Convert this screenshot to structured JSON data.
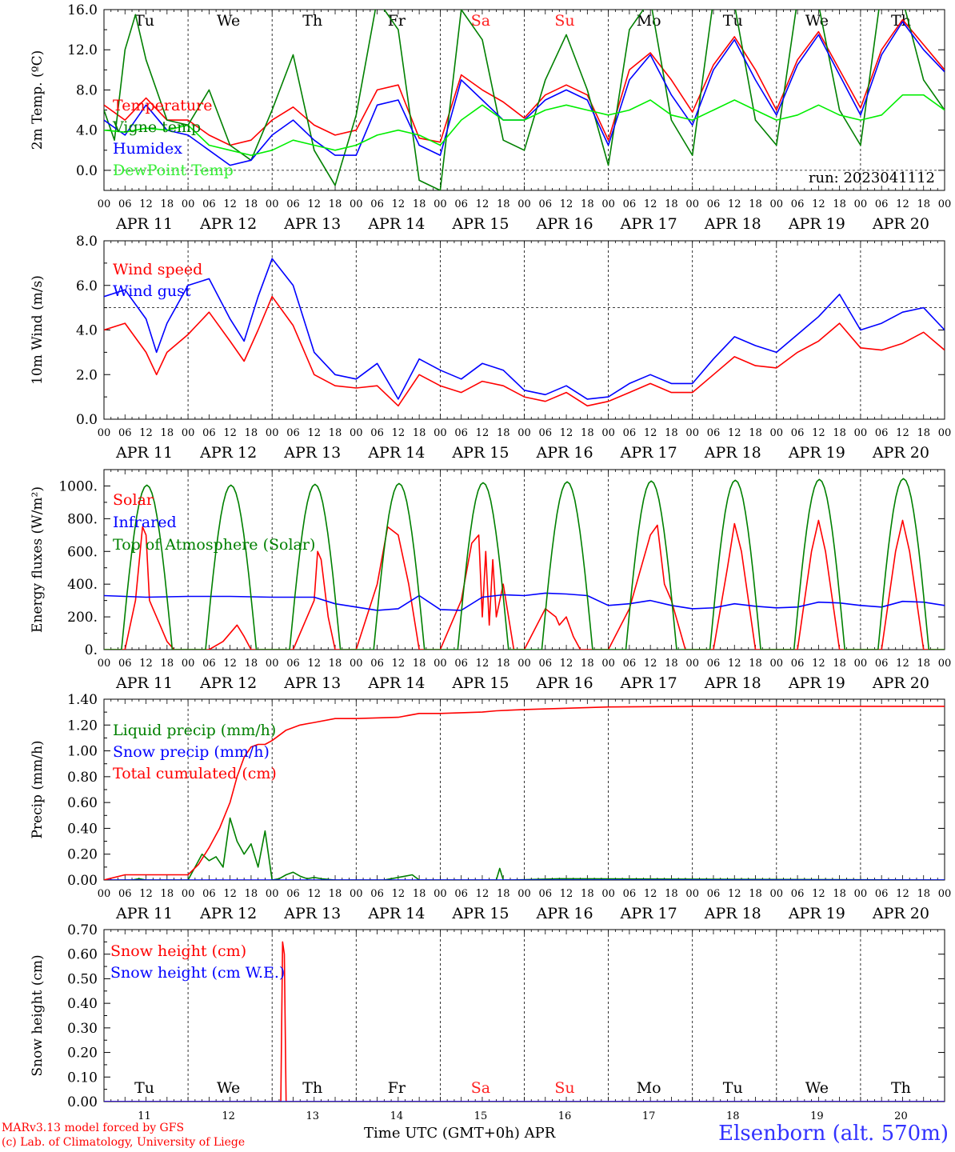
{
  "meta": {
    "run_label": "run: 2023041112",
    "model_line": "MARv3.13 model forced by GFS",
    "credit_line": "(c) Lab. of Climatology, University of Liege",
    "time_axis_label": "Time UTC (GMT+0h) APR",
    "station": "Elsenborn (alt. 570m)",
    "hour_ticks": [
      "00",
      "06",
      "12",
      "18"
    ],
    "date_labels": [
      "APR 11",
      "APR 12",
      "APR 13",
      "APR 14",
      "APR 15",
      "APR 16",
      "APR 17",
      "APR 18",
      "APR 19",
      "APR 20"
    ],
    "day_names": [
      "Tu",
      "We",
      "Th",
      "Fr",
      "Sa",
      "Su",
      "Mo",
      "Tu",
      "We",
      "Th"
    ],
    "day_numbers": [
      "11",
      "12",
      "13",
      "14",
      "15",
      "16",
      "17",
      "18",
      "19",
      "20"
    ],
    "weekend_color": "#ff2020",
    "colors": {
      "red": "#ff0000",
      "green": "#008000",
      "blue": "#0000ff",
      "lightgreen": "#00ee00"
    }
  },
  "chart_data": [
    {
      "type": "line",
      "title": "",
      "ylabel": "2m Temp. (ºC)",
      "ylim": [
        -2,
        16
      ],
      "yticks": [
        "0.0",
        "4.0",
        "8.0",
        "12.0",
        "16.0"
      ],
      "hline": 0,
      "x_unit": "hours since APR 11 00 UTC",
      "series": [
        {
          "name": "Temperature",
          "color": "#ff0000",
          "x": [
            0,
            6,
            12,
            18,
            24,
            30,
            36,
            42,
            48,
            54,
            60,
            66,
            72,
            78,
            84,
            90,
            96,
            102,
            108,
            114,
            120,
            126,
            132,
            138,
            144,
            150,
            156,
            162,
            168,
            174,
            180,
            186,
            192,
            198,
            204,
            210,
            216,
            222,
            228,
            234,
            240
          ],
          "y": [
            6.5,
            5.0,
            7.2,
            5.0,
            5.0,
            3.5,
            2.5,
            3.0,
            5.0,
            6.3,
            4.5,
            3.5,
            4.0,
            8.0,
            8.5,
            3.2,
            2.8,
            9.5,
            8.0,
            6.8,
            5.2,
            7.5,
            8.5,
            7.5,
            3.0,
            10.0,
            11.7,
            9.0,
            5.8,
            10.5,
            13.3,
            10.0,
            6.0,
            11.0,
            13.8,
            10.0,
            6.2,
            12.0,
            15.0,
            12.5,
            10.0
          ]
        },
        {
          "name": "Vigne temp",
          "color": "#008000",
          "x": [
            0,
            3,
            6,
            9,
            12,
            15,
            18,
            24,
            30,
            36,
            42,
            48,
            54,
            60,
            66,
            72,
            78,
            84,
            90,
            96,
            102,
            108,
            114,
            120,
            126,
            132,
            138,
            144,
            150,
            156,
            162,
            168,
            174,
            180,
            186,
            192,
            198,
            204,
            210,
            216,
            222,
            228,
            234,
            240
          ],
          "y": [
            6.0,
            3.0,
            12.0,
            15.5,
            11.0,
            8.0,
            5.0,
            4.5,
            8.0,
            2.5,
            1.0,
            6.0,
            11.5,
            2.0,
            -1.5,
            5.5,
            17.0,
            14.0,
            -1.0,
            -2.0,
            16.0,
            13.0,
            3.0,
            2.0,
            9.0,
            13.5,
            8.0,
            0.5,
            14.0,
            17.0,
            5.0,
            1.5,
            17.0,
            16.5,
            5.0,
            2.5,
            17.0,
            16.5,
            6.0,
            2.5,
            18.0,
            17.0,
            9.0,
            6.0
          ]
        },
        {
          "name": "Humidex",
          "color": "#0000ff",
          "x": [
            0,
            6,
            12,
            18,
            24,
            30,
            36,
            42,
            48,
            54,
            60,
            66,
            72,
            78,
            84,
            90,
            96,
            102,
            108,
            114,
            120,
            126,
            132,
            138,
            144,
            150,
            156,
            162,
            168,
            174,
            180,
            186,
            192,
            198,
            204,
            210,
            216,
            222,
            228,
            234,
            240
          ],
          "y": [
            5.0,
            3.5,
            6.5,
            4.0,
            3.5,
            2.0,
            0.5,
            1.0,
            3.5,
            5.0,
            3.0,
            1.5,
            1.5,
            6.5,
            7.0,
            2.5,
            1.5,
            9.0,
            7.0,
            5.0,
            5.0,
            7.0,
            8.0,
            7.0,
            2.5,
            9.0,
            11.5,
            7.5,
            4.5,
            10.0,
            13.0,
            9.0,
            5.5,
            10.5,
            13.5,
            9.5,
            5.5,
            11.5,
            14.8,
            12.0,
            9.8
          ]
        },
        {
          "name": "DewPoint Temp",
          "color": "#00ee00",
          "x": [
            0,
            6,
            12,
            18,
            24,
            30,
            36,
            42,
            48,
            54,
            60,
            66,
            72,
            78,
            84,
            90,
            96,
            102,
            108,
            114,
            120,
            126,
            132,
            138,
            144,
            150,
            156,
            162,
            168,
            174,
            180,
            186,
            192,
            198,
            204,
            210,
            216,
            222,
            228,
            234,
            240
          ],
          "y": [
            4.0,
            3.8,
            4.2,
            4.0,
            4.5,
            2.5,
            2.0,
            1.5,
            2.0,
            3.0,
            2.5,
            2.0,
            2.5,
            3.5,
            4.0,
            3.5,
            2.5,
            5.0,
            6.5,
            5.0,
            5.0,
            6.0,
            6.5,
            6.0,
            5.5,
            6.0,
            7.0,
            5.5,
            5.0,
            6.0,
            7.0,
            6.0,
            5.0,
            5.5,
            6.5,
            5.5,
            5.0,
            5.5,
            7.5,
            7.5,
            6.0
          ]
        }
      ]
    },
    {
      "type": "line",
      "title": "",
      "ylabel": "10m Wind (m/s)",
      "ylim": [
        0,
        8
      ],
      "yticks": [
        "0.0",
        "2.0",
        "4.0",
        "6.0",
        "8.0"
      ],
      "hline": 5,
      "x_unit": "hours since APR 11 00 UTC",
      "series": [
        {
          "name": "Wind speed",
          "color": "#ff0000",
          "x": [
            0,
            6,
            12,
            15,
            18,
            24,
            30,
            36,
            40,
            44,
            48,
            54,
            60,
            66,
            72,
            78,
            84,
            90,
            96,
            102,
            108,
            114,
            120,
            126,
            132,
            138,
            144,
            150,
            156,
            162,
            168,
            174,
            180,
            186,
            192,
            198,
            204,
            210,
            216,
            222,
            228,
            234,
            240
          ],
          "y": [
            4.0,
            4.3,
            3.0,
            2.0,
            3.0,
            3.8,
            4.8,
            3.5,
            2.6,
            4.0,
            5.5,
            4.2,
            2.0,
            1.5,
            1.4,
            1.5,
            0.6,
            2.0,
            1.5,
            1.2,
            1.7,
            1.5,
            1.0,
            0.8,
            1.2,
            0.6,
            0.8,
            1.2,
            1.6,
            1.2,
            1.2,
            2.0,
            2.8,
            2.4,
            2.3,
            3.0,
            3.5,
            4.3,
            3.2,
            3.1,
            3.4,
            3.9,
            3.1
          ]
        },
        {
          "name": "Wind gust",
          "color": "#0000ff",
          "x": [
            0,
            6,
            12,
            15,
            18,
            24,
            30,
            36,
            40,
            44,
            48,
            54,
            60,
            66,
            72,
            78,
            84,
            90,
            96,
            102,
            108,
            114,
            120,
            126,
            132,
            138,
            144,
            150,
            156,
            162,
            168,
            174,
            180,
            186,
            192,
            198,
            204,
            210,
            216,
            222,
            228,
            234,
            240
          ],
          "y": [
            5.5,
            5.8,
            4.5,
            3.0,
            4.3,
            6.0,
            6.3,
            4.5,
            3.5,
            5.5,
            7.2,
            6.0,
            3.0,
            2.0,
            1.8,
            2.5,
            0.9,
            2.7,
            2.2,
            1.8,
            2.5,
            2.2,
            1.3,
            1.1,
            1.5,
            0.9,
            1.0,
            1.6,
            2.0,
            1.6,
            1.6,
            2.7,
            3.7,
            3.3,
            3.0,
            3.8,
            4.6,
            5.6,
            4.0,
            4.3,
            4.8,
            5.0,
            4.0
          ]
        }
      ]
    },
    {
      "type": "line",
      "title": "",
      "ylabel": "Energy fluxes (W/m²)",
      "ylim": [
        0,
        1100
      ],
      "yticks": [
        "0.",
        "200.",
        "400.",
        "600.",
        "800.",
        "1000."
      ],
      "x_unit": "hours since APR 11 00 UTC",
      "series": [
        {
          "name": "Solar",
          "color": "#ff0000",
          "x": [
            0,
            6,
            9,
            11,
            12,
            13,
            14,
            16,
            18,
            20,
            24,
            30,
            34,
            38,
            40,
            42,
            48,
            54,
            60,
            61,
            62,
            64,
            66,
            72,
            78,
            81,
            84,
            87,
            90,
            96,
            102,
            105,
            107,
            108,
            109,
            110,
            111,
            112,
            114,
            117,
            120,
            126,
            129,
            130,
            132,
            134,
            136,
            140,
            144,
            150,
            156,
            158,
            160,
            162,
            166,
            168,
            174,
            178,
            180,
            182,
            186,
            192,
            198,
            202,
            204,
            206,
            210,
            216,
            222,
            226,
            228,
            230,
            234,
            240
          ],
          "y": [
            0,
            0,
            300,
            750,
            700,
            300,
            250,
            150,
            50,
            0,
            0,
            0,
            50,
            150,
            80,
            0,
            0,
            0,
            300,
            600,
            550,
            200,
            0,
            0,
            400,
            750,
            700,
            400,
            0,
            0,
            300,
            650,
            700,
            200,
            600,
            150,
            550,
            200,
            400,
            0,
            0,
            250,
            200,
            150,
            200,
            80,
            0,
            0,
            0,
            250,
            700,
            760,
            400,
            300,
            0,
            0,
            0,
            500,
            770,
            600,
            0,
            0,
            0,
            600,
            790,
            600,
            0,
            0,
            0,
            600,
            790,
            600,
            0,
            0
          ]
        },
        {
          "name": "Infrared",
          "color": "#0000ff",
          "x": [
            0,
            12,
            24,
            36,
            48,
            60,
            66,
            72,
            78,
            84,
            90,
            96,
            102,
            108,
            114,
            120,
            126,
            132,
            138,
            144,
            150,
            156,
            162,
            168,
            174,
            180,
            186,
            192,
            198,
            204,
            210,
            216,
            222,
            228,
            234,
            240
          ],
          "y": [
            330,
            320,
            325,
            325,
            320,
            320,
            280,
            260,
            240,
            250,
            330,
            245,
            240,
            320,
            335,
            330,
            345,
            340,
            330,
            270,
            280,
            300,
            270,
            250,
            255,
            280,
            265,
            255,
            260,
            290,
            285,
            270,
            260,
            295,
            290,
            270
          ]
        },
        {
          "name": "Top of Atmosphere (Solar)",
          "color": "#008000",
          "diurnal_peaks": [
            1005,
            1005,
            1010,
            1015,
            1020,
            1025,
            1030,
            1035,
            1040,
            1045
          ],
          "sunrise_hour": 5,
          "sunset_hour": 19.5
        }
      ]
    },
    {
      "type": "line",
      "title": "",
      "ylabel": "Precip (mm/h)",
      "ylim": [
        0,
        1.4
      ],
      "yticks": [
        "0.00",
        "0.20",
        "0.40",
        "0.60",
        "0.80",
        "1.00",
        "1.20",
        "1.40"
      ],
      "x_unit": "hours since APR 11 00 UTC",
      "series": [
        {
          "name": "Liquid precip (mm/h)",
          "color": "#008000",
          "x": [
            0,
            8,
            10,
            12,
            24,
            25,
            26,
            28,
            30,
            32,
            34,
            36,
            38,
            40,
            42,
            44,
            46,
            48,
            50,
            52,
            54,
            56,
            58,
            60,
            62,
            66,
            80,
            86,
            88,
            90,
            108,
            112,
            113,
            114,
            116,
            130,
            240
          ],
          "y": [
            0,
            0,
            0.01,
            0,
            0,
            0.05,
            0.1,
            0.2,
            0.15,
            0.18,
            0.1,
            0.48,
            0.3,
            0.2,
            0.28,
            0.1,
            0.38,
            0,
            0.01,
            0.04,
            0.06,
            0.03,
            0.01,
            0.02,
            0.01,
            0,
            0,
            0.03,
            0.04,
            0,
            0,
            0,
            0.09,
            0,
            0,
            0.01,
            0
          ]
        },
        {
          "name": "Snow precip (mm/h)",
          "color": "#0000ff",
          "x": [
            0,
            240
          ],
          "y": [
            0,
            0
          ]
        },
        {
          "name": "Total cumulated (cm)",
          "color": "#ff0000",
          "x": [
            0,
            6,
            24,
            27,
            30,
            33,
            36,
            38,
            40,
            42,
            44,
            46,
            48,
            50,
            52,
            56,
            60,
            66,
            72,
            84,
            90,
            96,
            108,
            112,
            120,
            132,
            144,
            168,
            240
          ],
          "y": [
            0,
            0.04,
            0.04,
            0.12,
            0.25,
            0.4,
            0.6,
            0.8,
            0.95,
            1.03,
            1.05,
            1.05,
            1.08,
            1.12,
            1.16,
            1.2,
            1.22,
            1.25,
            1.25,
            1.26,
            1.29,
            1.29,
            1.3,
            1.31,
            1.32,
            1.33,
            1.34,
            1.345,
            1.345
          ]
        }
      ]
    },
    {
      "type": "line",
      "title": "",
      "ylabel": "Snow height (cm)",
      "ylim": [
        0,
        0.7
      ],
      "yticks": [
        "0.00",
        "0.10",
        "0.20",
        "0.30",
        "0.40",
        "0.50",
        "0.60",
        "0.70"
      ],
      "x_unit": "hours since APR 11 00 UTC",
      "series": [
        {
          "name": "Snow height (cm)",
          "color": "#ff0000",
          "x": [
            0,
            50.5,
            51,
            51.5,
            52,
            240
          ],
          "y": [
            0,
            0,
            0.65,
            0.6,
            0,
            0
          ]
        },
        {
          "name": "Snow height (cm W.E.)",
          "color": "#0000ff",
          "x": [
            0,
            240
          ],
          "y": [
            0,
            0
          ]
        }
      ]
    }
  ]
}
